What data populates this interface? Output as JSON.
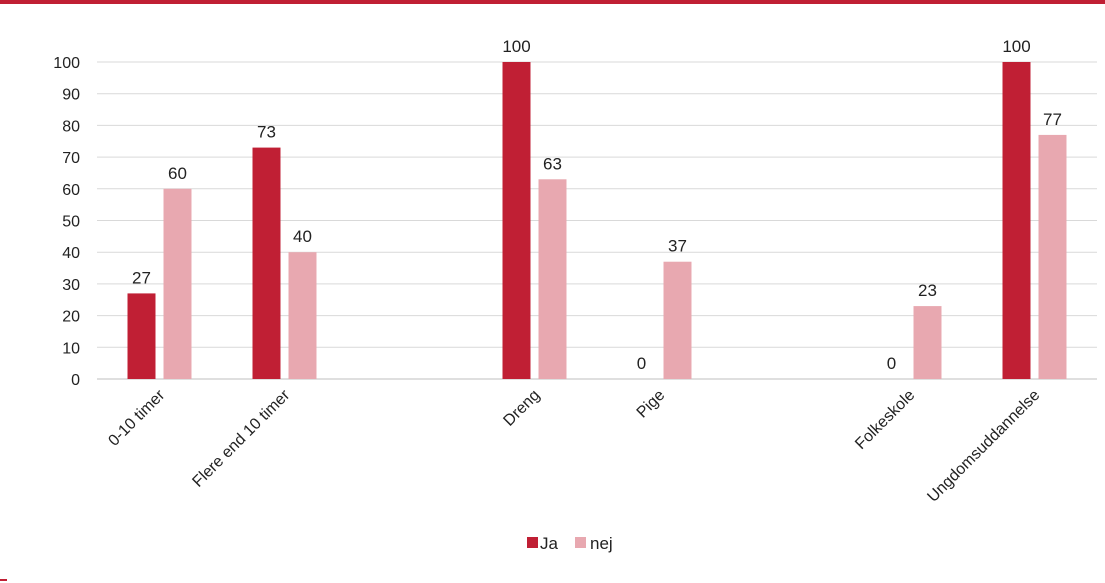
{
  "chart_data": {
    "type": "bar",
    "categories": [
      "0-10 timer",
      "Flere end 10 timer",
      "",
      "Dreng",
      "Pige",
      "",
      "Folkeskole",
      "Ungdomsuddannelse"
    ],
    "series": [
      {
        "name": "Ja",
        "values": [
          27,
          73,
          null,
          100,
          0,
          null,
          0,
          100
        ]
      },
      {
        "name": "nej",
        "values": [
          60,
          40,
          null,
          63,
          37,
          null,
          23,
          77
        ]
      }
    ],
    "yticks": [
      "0",
      "10",
      "20",
      "30",
      "40",
      "50",
      "60",
      "70",
      "80",
      "90",
      "100"
    ],
    "ylim": [
      0,
      100
    ],
    "grid": true,
    "legend": "bottom-center",
    "colors": {
      "Ja": "#c01f34",
      "nej": "#e8a8b0",
      "accent": "#c01f34",
      "grid": "#d9d9d9"
    }
  }
}
